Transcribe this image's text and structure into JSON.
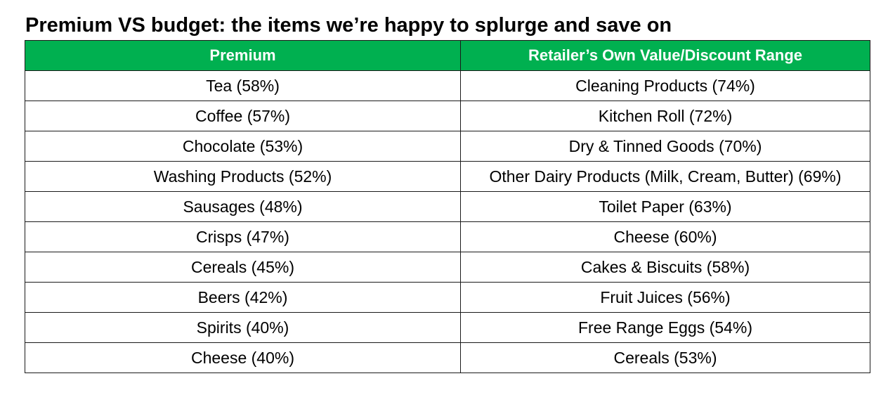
{
  "chart_data": {
    "type": "table",
    "title": "Premium VS budget: the items we’re happy to splurge and save on",
    "header_color": "#00b050",
    "header_text_color": "#ffffff",
    "columns": [
      "Premium",
      "Retailer’s Own Value/Discount Range"
    ],
    "rows": [
      [
        "Tea (58%)",
        "Cleaning Products (74%)"
      ],
      [
        "Coffee (57%)",
        "Kitchen Roll (72%)"
      ],
      [
        "Chocolate (53%)",
        "Dry & Tinned Goods (70%)"
      ],
      [
        "Washing Products (52%)",
        "Other Dairy Products (Milk, Cream, Butter) (69%)"
      ],
      [
        "Sausages (48%)",
        "Toilet Paper (63%)"
      ],
      [
        "Crisps (47%)",
        "Cheese (60%)"
      ],
      [
        "Cereals (45%)",
        "Cakes & Biscuits (58%)"
      ],
      [
        "Beers (42%)",
        "Fruit Juices (56%)"
      ],
      [
        "Spirits (40%)",
        "Free Range Eggs (54%)"
      ],
      [
        "Cheese (40%)",
        "Cereals (53%)"
      ]
    ]
  }
}
